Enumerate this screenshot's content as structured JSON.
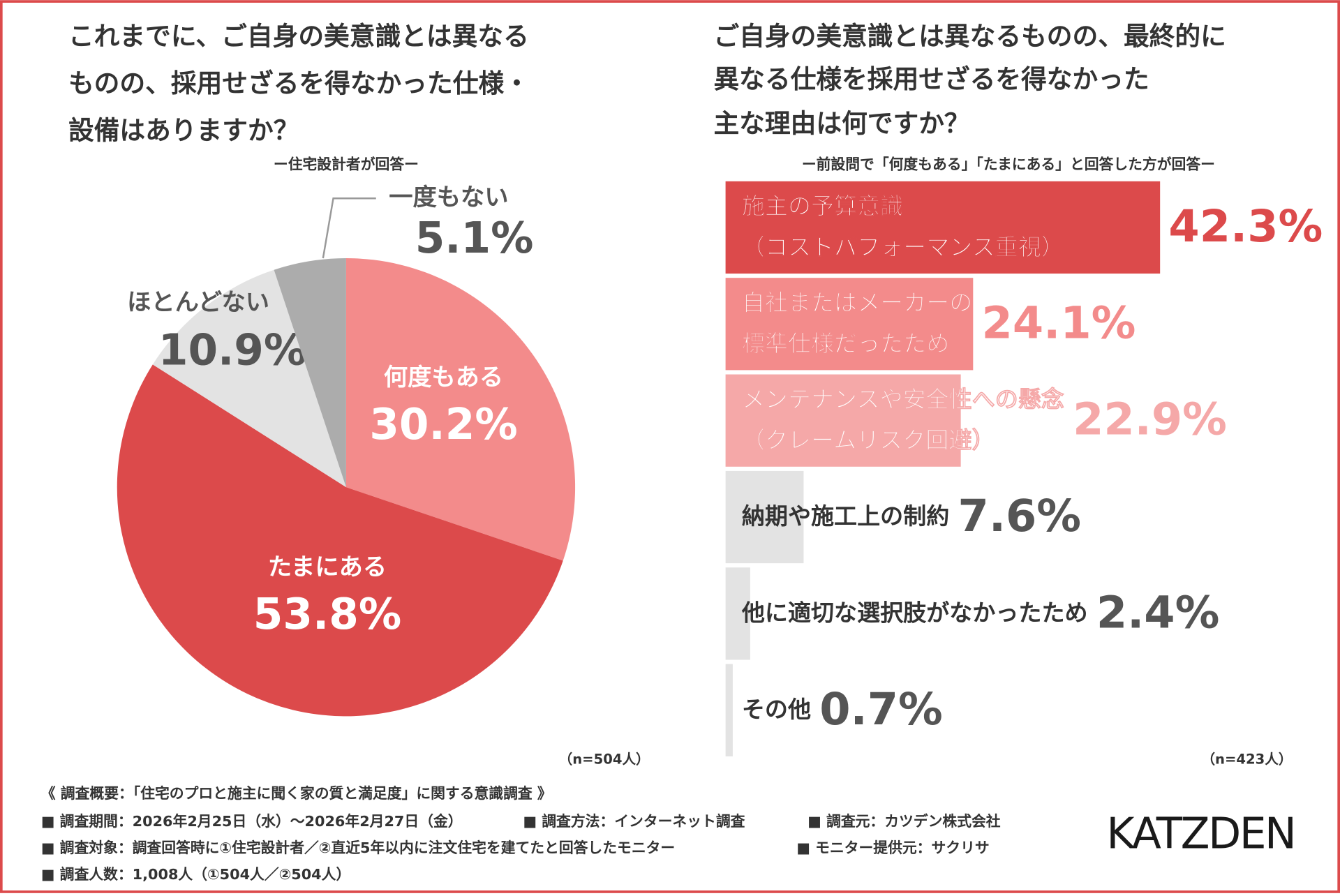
{
  "chart_data": [
    {
      "type": "pie",
      "title": [
        "これまでに、ご自身の美意識とは異なる",
        "ものの、採用せざるを得なかった仕様・",
        "設備はありますか？"
      ],
      "subtitle": "ー住宅設計者が回答ー",
      "categories": [
        "何度もある",
        "たまにある",
        "ほとんどない",
        "一度もない"
      ],
      "values": [
        30.2,
        53.8,
        10.9,
        5.1
      ],
      "value_labels": [
        "30.2%",
        "53.8%",
        "10.9%",
        "5.1%"
      ],
      "colors": [
        "#f38b8b",
        "#dc4a4b",
        "#e3e3e3",
        "#acacac"
      ],
      "note": "（n=504人）"
    },
    {
      "type": "hbar",
      "title": [
        "ご自身の美意識とは異なるものの、最終的に",
        "異なる仕様を採用せざるを得なかった",
        "主な理由は何ですか？"
      ],
      "subtitle": "ー前設問で「何度もある」「たまにある」と回答した方が回答ー",
      "categories": [
        "施主の予算意識\n（コストパフォーマンス重視）",
        "自社またはメーカーの\n標準仕様だったため",
        "メンテナンスや安全性への懸念\n（クレームリスク回避）",
        "納期や施工上の制約",
        "他に適切な選択肢がなかったため",
        "その他"
      ],
      "values": [
        42.3,
        24.1,
        22.9,
        7.6,
        2.4,
        0.7
      ],
      "value_labels": [
        "42.3%",
        "24.1%",
        "22.9%",
        "7.6%",
        "2.4%",
        "0.7%"
      ],
      "colors": [
        "#dc4a4b",
        "#f38b8b",
        "#f5a8a8",
        "#e3e3e3",
        "#e3e3e3",
        "#e3e3e3"
      ],
      "value_label_colors": [
        "#dc4a4b",
        "#f38b8b",
        "#f5a8a8",
        "#555555",
        "#555555",
        "#555555"
      ],
      "xlim": [
        0,
        50
      ],
      "note": "（n=423人）"
    }
  ],
  "survey": {
    "heading": "《 調査概要：「住宅のプロと施主に聞く家の質と満足度」に関する意識調査 》",
    "items": [
      [
        "■ 調査期間：2026年2月25日（水）〜2026年2月27日（金）",
        "■ 調査方法：インターネット調査",
        "■ 調査元：カツデン株式会社"
      ],
      [
        "■ 調査対象：調査回答時に①住宅設計者／②直近5年以内に注文住宅を建てたと回答したモニター",
        "■ モニター提供元：サクリサ"
      ],
      [
        "■ 調査人数：1,008人（①504人／②504人）"
      ]
    ]
  },
  "logo": "KATZDEN"
}
